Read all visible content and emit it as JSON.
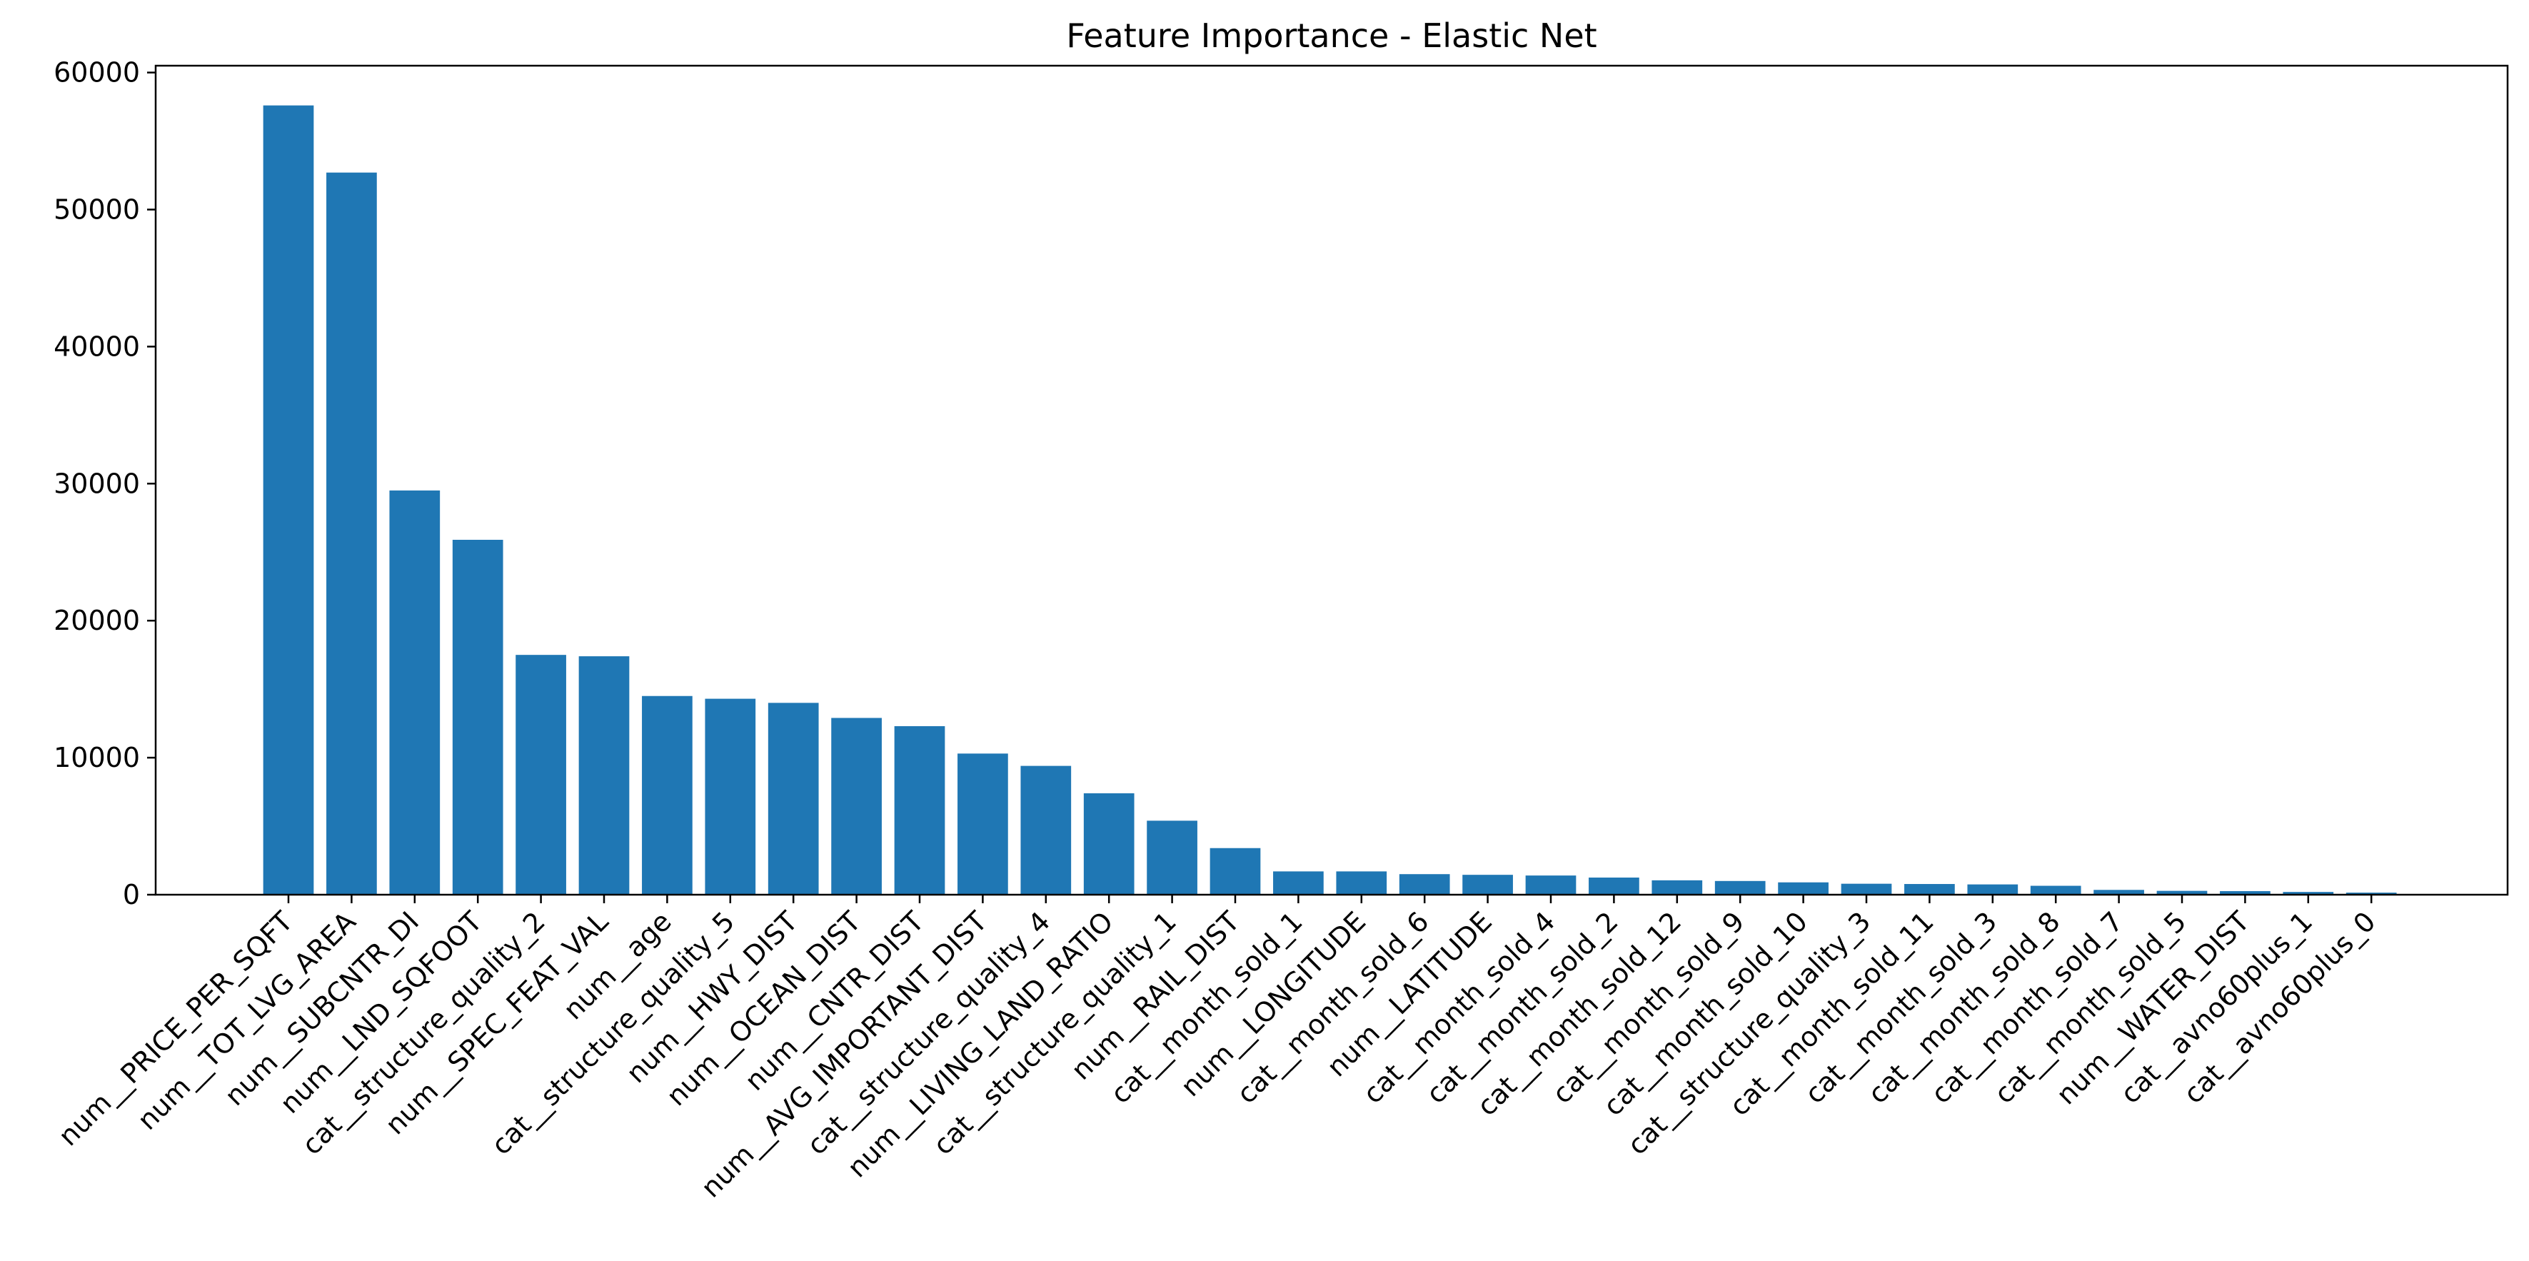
{
  "colors": {
    "bar": "#1f77b4",
    "axis": "#000000",
    "background": "#ffffff"
  },
  "chart_data": {
    "type": "bar",
    "title": "Feature Importance - Elastic Net",
    "xlabel": "",
    "ylabel": "",
    "ylim": [
      0,
      60500
    ],
    "yticks": [
      0,
      10000,
      20000,
      30000,
      40000,
      50000,
      60000
    ],
    "ytick_labels": [
      "0",
      "10000",
      "20000",
      "30000",
      "40000",
      "50000",
      "60000"
    ],
    "grid": false,
    "legend": "none",
    "categories": [
      "num__PRICE_PER_SQFT",
      "num__TOT_LVG_AREA",
      "num__SUBCNTR_DI",
      "num__LND_SQFOOT",
      "cat__structure_quality_2",
      "num__SPEC_FEAT_VAL",
      "num__age",
      "cat__structure_quality_5",
      "num__HWY_DIST",
      "num__OCEAN_DIST",
      "num__CNTR_DIST",
      "num__AVG_IMPORTANT_DIST",
      "cat__structure_quality_4",
      "num__LIVING_LAND_RATIO",
      "cat__structure_quality_1",
      "num__RAIL_DIST",
      "cat__month_sold_1",
      "num__LONGITUDE",
      "cat__month_sold_6",
      "num__LATITUDE",
      "cat__month_sold_4",
      "cat__month_sold_2",
      "cat__month_sold_12",
      "cat__month_sold_9",
      "cat__month_sold_10",
      "cat__structure_quality_3",
      "cat__month_sold_11",
      "cat__month_sold_3",
      "cat__month_sold_8",
      "cat__month_sold_7",
      "cat__month_sold_5",
      "num__WATER_DIST",
      "cat__avno60plus_1",
      "cat__avno60plus_0"
    ],
    "values": [
      57600,
      52700,
      29500,
      25900,
      17500,
      17400,
      14500,
      14300,
      14000,
      12900,
      12300,
      10300,
      9400,
      7400,
      5400,
      3400,
      1700,
      1700,
      1500,
      1450,
      1400,
      1250,
      1050,
      1000,
      900,
      800,
      780,
      750,
      650,
      350,
      280,
      260,
      200,
      150
    ]
  }
}
